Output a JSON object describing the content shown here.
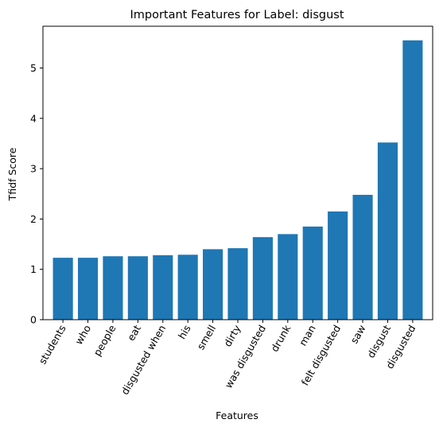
{
  "chart_data": {
    "type": "bar",
    "title": "Important Features for Label: disgust",
    "xlabel": "Features",
    "ylabel": "Tfidf Score",
    "categories": [
      "students",
      "who",
      "people",
      "eat",
      "disgusted when",
      "his",
      "smell",
      "dirty",
      "was disgusted",
      "drunk",
      "man",
      "felt disgusted",
      "saw",
      "disgust",
      "disgusted"
    ],
    "values": [
      1.23,
      1.23,
      1.26,
      1.26,
      1.28,
      1.29,
      1.4,
      1.42,
      1.64,
      1.7,
      1.85,
      2.15,
      2.48,
      3.52,
      5.55
    ],
    "yticks": [
      "0",
      "1",
      "2",
      "3",
      "4",
      "5"
    ],
    "ylim": [
      0,
      5.83
    ],
    "bar_color": "#1f77b4",
    "grid": false,
    "legend": "none"
  }
}
